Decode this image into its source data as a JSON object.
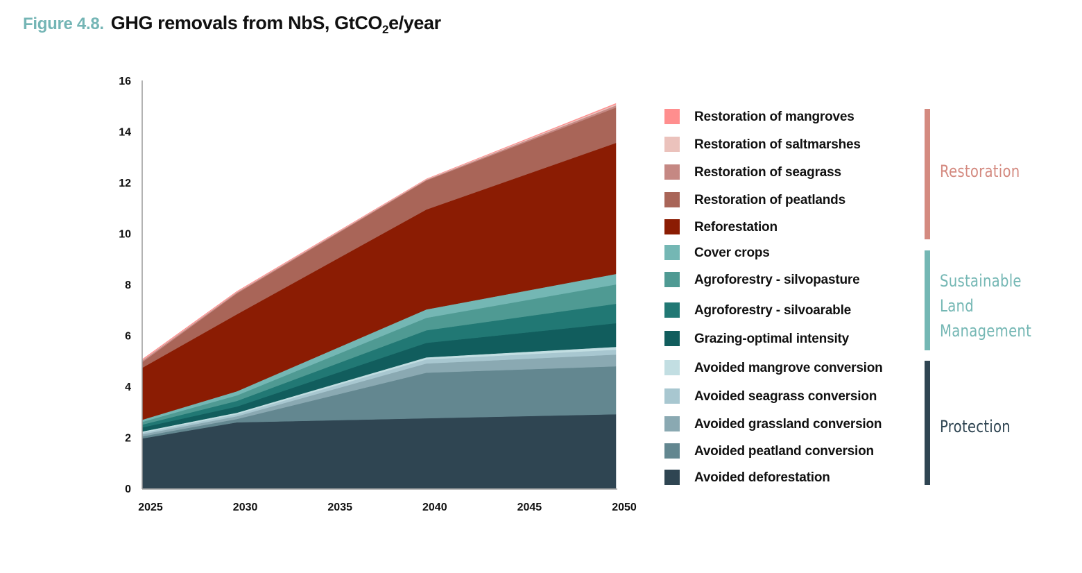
{
  "figure": {
    "number_label": "Figure 4.8.",
    "title_pre": "GHG removals from NbS, GtCO",
    "title_sub": "2",
    "title_post": "e/year"
  },
  "colors": {
    "figure_label": "#74b5b5",
    "axis_line": "#9a9a9a"
  },
  "chart_data": {
    "type": "area",
    "stacked": true,
    "title": "GHG removals from NbS, GtCO2e/year",
    "xlabel": "",
    "ylabel": "",
    "x": [
      2025,
      2030,
      2040,
      2050
    ],
    "xlim": [
      2025,
      2050
    ],
    "x_ticks": [
      2025,
      2030,
      2035,
      2040,
      2045,
      2050
    ],
    "x_tick_labels": [
      "2025",
      "2030",
      "2035",
      "2040",
      "2045",
      "2050"
    ],
    "ylim": [
      0,
      16
    ],
    "y_ticks": [
      0,
      2,
      4,
      6,
      8,
      10,
      12,
      14,
      16
    ],
    "y_tick_labels": [
      "0",
      "2",
      "4",
      "6",
      "8",
      "10",
      "12",
      "14",
      "16"
    ],
    "grid": false,
    "legend_position": "right",
    "series": [
      {
        "name": "Avoided deforestation",
        "group": "Protection",
        "color": "#2f4552",
        "values": [
          1.96,
          2.59,
          2.75,
          2.91
        ]
      },
      {
        "name": "Avoided peatland conversion",
        "group": "Protection",
        "color": "#638790",
        "values": [
          0.08,
          0.13,
          1.79,
          1.88
        ]
      },
      {
        "name": "Avoided grassland conversion",
        "group": "Protection",
        "color": "#8aa9b2",
        "values": [
          0.08,
          0.11,
          0.36,
          0.46
        ]
      },
      {
        "name": "Avoided seagrass conversion",
        "group": "Protection",
        "color": "#a8c7d0",
        "values": [
          0.06,
          0.08,
          0.16,
          0.19
        ]
      },
      {
        "name": "Avoided mangrove conversion",
        "group": "Protection",
        "color": "#c2dee2",
        "values": [
          0.05,
          0.06,
          0.08,
          0.11
        ]
      },
      {
        "name": "Grazing-optimal intensity",
        "group": "Sustainable Land Management",
        "color": "#115d5d",
        "values": [
          0.16,
          0.24,
          0.57,
          0.93
        ]
      },
      {
        "name": "Agroforestry - silvoarable",
        "group": "Sustainable Land Management",
        "color": "#217874",
        "values": [
          0.11,
          0.22,
          0.49,
          0.76
        ]
      },
      {
        "name": "Agroforestry - silvopasture",
        "group": "Sustainable Land Management",
        "color": "#4f9a93",
        "values": [
          0.11,
          0.22,
          0.49,
          0.76
        ]
      },
      {
        "name": "Cover crops",
        "group": "Sustainable Land Management",
        "color": "#74b7b4",
        "values": [
          0.08,
          0.16,
          0.33,
          0.41
        ]
      },
      {
        "name": "Reforestation",
        "group": "Restoration",
        "color": "#8b1c03",
        "values": [
          2.04,
          3.02,
          3.92,
          5.14
        ]
      },
      {
        "name": "Restoration of peatlands",
        "group": "Restoration",
        "color": "#a96558",
        "values": [
          0.22,
          0.82,
          1.14,
          1.39
        ]
      },
      {
        "name": "Restoration of seagrass",
        "group": "Restoration",
        "color": "#c58883",
        "values": [
          0.06,
          0.04,
          0.03,
          0.08
        ]
      },
      {
        "name": "Restoration of saltmarshes",
        "group": "Restoration",
        "color": "#ebc2bc",
        "values": [
          0.02,
          0.02,
          0.02,
          0.05
        ]
      },
      {
        "name": "Restoration of mangroves",
        "group": "Restoration",
        "color": "#ff8e8e",
        "values": [
          0.03,
          0.02,
          0.01,
          0.03
        ]
      }
    ],
    "legend_order": [
      "Restoration of mangroves",
      "Restoration of saltmarshes",
      "Restoration of seagrass",
      "Restoration of peatlands",
      "Reforestation",
      "Cover crops",
      "Agroforestry - silvopasture",
      "Agroforestry - silvoarable",
      "Grazing-optimal intensity",
      "Avoided mangrove conversion",
      "Avoided seagrass conversion",
      "Avoided grassland conversion",
      "Avoided peatland conversion",
      "Avoided deforestation"
    ],
    "groups": [
      {
        "name": "Restoration",
        "label_lines": [
          "Restoration"
        ],
        "color": "#d48a80"
      },
      {
        "name": "Sustainable Land Management",
        "label_lines": [
          "Sustainable",
          "Land",
          "Management"
        ],
        "color": "#74b7b4"
      },
      {
        "name": "Protection",
        "label_lines": [
          "Protection"
        ],
        "color": "#2f4552"
      }
    ]
  }
}
